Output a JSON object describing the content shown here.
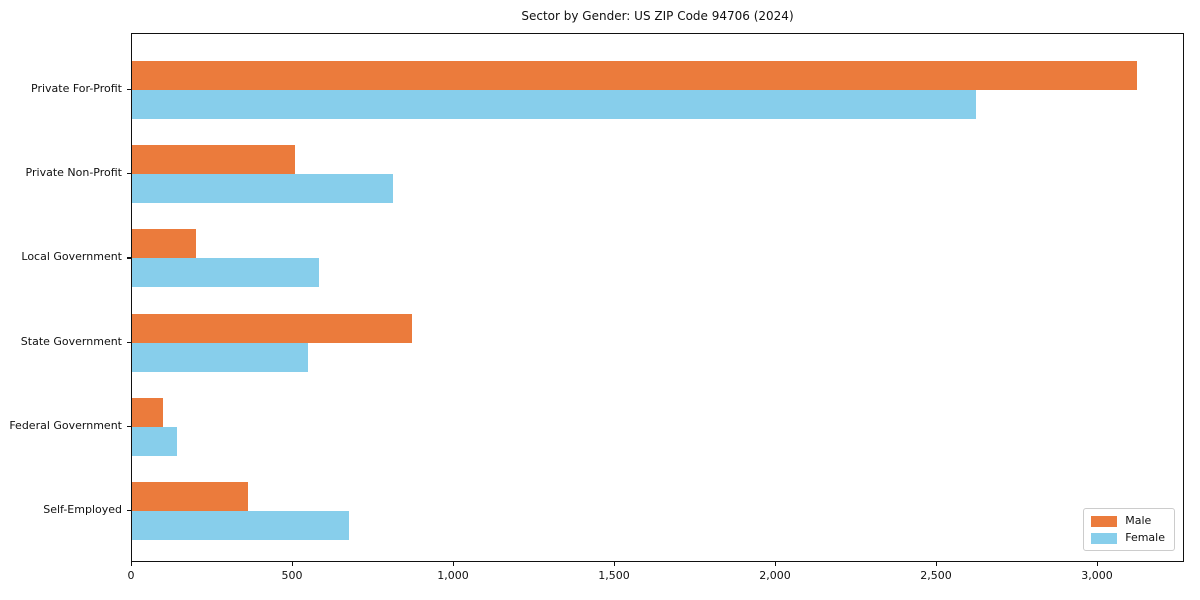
{
  "chart_data": {
    "type": "bar",
    "orientation": "horizontal",
    "title": "Sector by Gender: US ZIP Code 94706 (2024)",
    "categories": [
      "Private For-Profit",
      "Private Non-Profit",
      "Local Government",
      "State Government",
      "Federal Government",
      "Self-Employed"
    ],
    "series": [
      {
        "name": "Male",
        "color": "#EB7B3C",
        "values": [
          3120,
          505,
          200,
          870,
          95,
          360
        ]
      },
      {
        "name": "Female",
        "color": "#87CEEB",
        "values": [
          2620,
          810,
          580,
          545,
          140,
          675
        ]
      }
    ],
    "xlabel": "",
    "ylabel": "",
    "xlim": [
      0,
      3270
    ],
    "xticks": {
      "values": [
        0,
        500,
        1000,
        1500,
        2000,
        2500,
        3000
      ],
      "labels": [
        "0",
        "500",
        "1,000",
        "1,500",
        "2,000",
        "2,500",
        "3,000"
      ]
    },
    "grid": false,
    "legend": {
      "position": "lower right"
    }
  },
  "colors": {
    "male": "#EB7B3C",
    "female": "#87CEEB",
    "spine": "#111111",
    "text": "#111111",
    "legend_border": "#cccccc",
    "background": "#ffffff"
  }
}
